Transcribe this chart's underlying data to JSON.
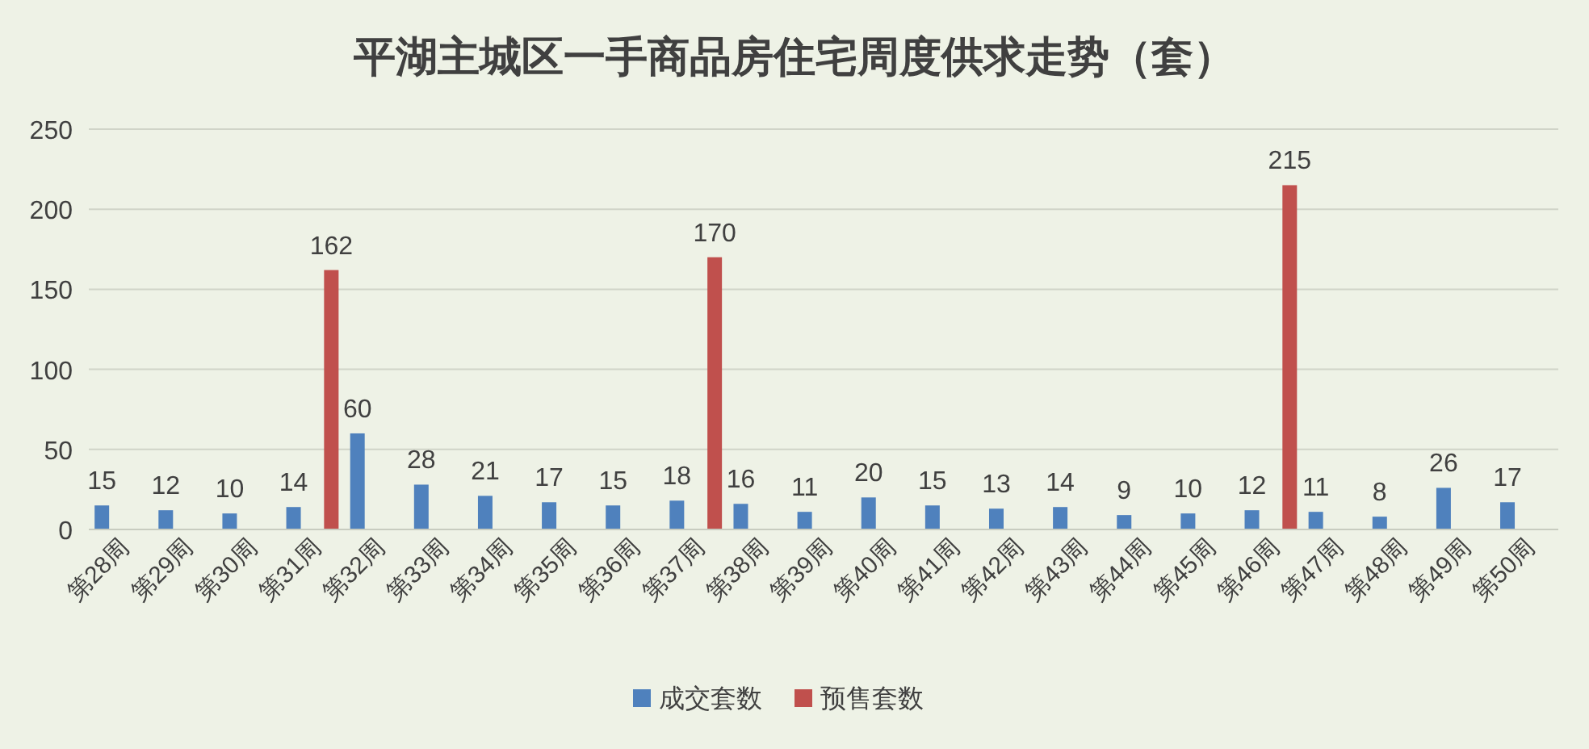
{
  "chart_data": {
    "type": "bar",
    "title": "平湖主城区一手商品房住宅周度供求走势（套）",
    "categories": [
      "第28周",
      "第29周",
      "第30周",
      "第31周",
      "第32周",
      "第33周",
      "第34周",
      "第35周",
      "第36周",
      "第37周",
      "第38周",
      "第39周",
      "第40周",
      "第41周",
      "第42周",
      "第43周",
      "第44周",
      "第45周",
      "第46周",
      "第47周",
      "第48周",
      "第49周",
      "第50周"
    ],
    "series": [
      {
        "name": "成交套数",
        "color": "#4f81bd",
        "values": [
          15,
          12,
          10,
          14,
          60,
          28,
          21,
          17,
          15,
          18,
          16,
          11,
          20,
          15,
          13,
          14,
          9,
          10,
          12,
          11,
          8,
          26,
          17
        ]
      },
      {
        "name": "预售套数",
        "color": "#c0504d",
        "values": [
          null,
          null,
          null,
          162,
          null,
          null,
          null,
          null,
          null,
          170,
          null,
          null,
          null,
          null,
          null,
          null,
          null,
          null,
          215,
          null,
          null,
          null,
          null
        ]
      }
    ],
    "ylim": [
      0,
      250
    ],
    "yticks": [
      0,
      50,
      100,
      150,
      200,
      250
    ],
    "grid": "y",
    "data_labels": true,
    "legend": "bottom"
  }
}
